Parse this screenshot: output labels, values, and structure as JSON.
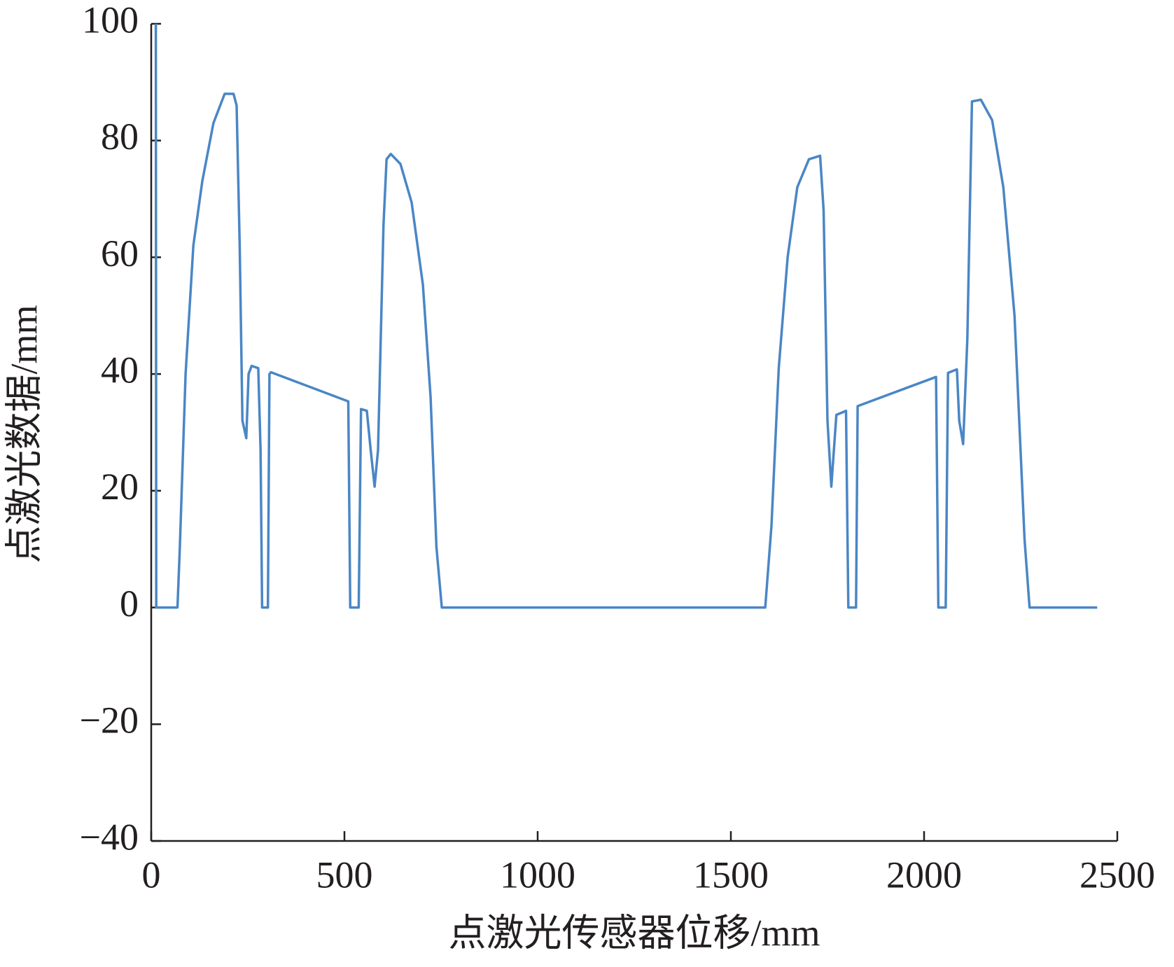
{
  "chart_data": {
    "type": "line",
    "xlabel": "点激光传感器位移/mm",
    "ylabel": "点激光数据/mm",
    "color": "#4a86c5",
    "xlim": [
      0,
      2500
    ],
    "ylim": [
      -40,
      100
    ],
    "xticks": [
      0,
      500,
      1000,
      1500,
      2000,
      2500
    ],
    "yticks": [
      {
        "value": -40,
        "label": "−40"
      },
      {
        "value": -20,
        "label": "−20"
      },
      0,
      20,
      40,
      60,
      80,
      100
    ],
    "x": [
      12,
      13,
      68,
      74,
      89,
      109,
      132,
      161,
      190,
      213,
      221,
      229,
      236,
      246,
      252,
      260,
      277,
      283,
      287,
      302,
      306,
      310,
      510,
      515,
      537,
      543,
      558,
      568,
      578,
      587,
      601,
      609,
      620,
      645,
      674,
      703,
      723,
      738,
      752,
      1589,
      1605,
      1624,
      1647,
      1672,
      1702,
      1731,
      1740,
      1750,
      1760,
      1773,
      1798,
      1804,
      1824,
      1828,
      2031,
      2037,
      2056,
      2062,
      2085,
      2091,
      2101,
      2112,
      2124,
      2147,
      2176,
      2205,
      2234,
      2260,
      2273,
      2448
    ],
    "values": [
      100,
      0,
      0,
      10,
      40,
      62,
      73,
      83,
      88,
      88,
      86,
      62,
      32,
      29,
      40,
      41.4,
      41,
      27,
      0,
      0,
      40,
      40.3,
      35.3,
      0,
      0,
      34,
      33.7,
      27,
      20.7,
      27,
      65.5,
      76.8,
      77.7,
      76,
      69.4,
      55.3,
      36,
      10.4,
      0,
      0,
      14,
      41,
      60,
      72,
      76.8,
      77.4,
      68,
      32,
      20.7,
      33,
      33.7,
      0,
      0,
      34.5,
      39.5,
      0,
      0,
      40.2,
      40.8,
      32,
      28,
      46,
      86.7,
      87,
      83.5,
      72,
      50,
      11.7,
      0,
      0
    ]
  }
}
